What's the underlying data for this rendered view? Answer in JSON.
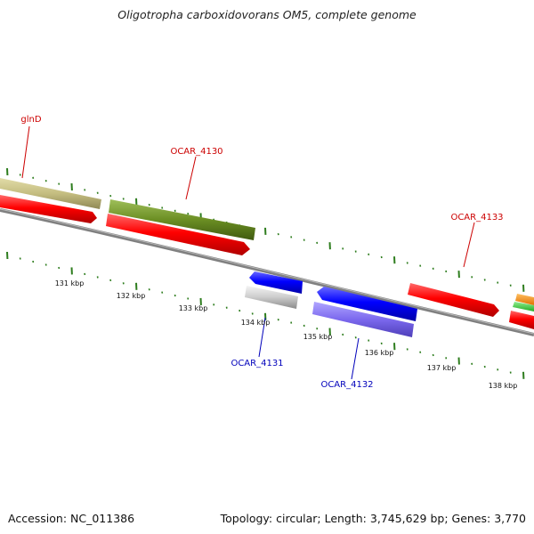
{
  "title": "Oligotropha carboxidovorans OM5, complete genome",
  "footer": {
    "accession": "Accession: NC_011386",
    "topology": "Topology: circular; Length: 3,745,629 bp; Genes: 3,770"
  },
  "scale": {
    "labels": [
      "131 kbp",
      "132 kbp",
      "133 kbp",
      "134 kbp",
      "135 kbp",
      "136 kbp",
      "137 kbp",
      "138 kbp"
    ]
  },
  "genes": [
    {
      "id": "glnD",
      "label": "glnD",
      "color": "#cc0000"
    },
    {
      "id": "OCAR_4130",
      "label": "OCAR_4130",
      "color": "#cc0000"
    },
    {
      "id": "OCAR_4133",
      "label": "OCAR_4133",
      "color": "#cc0000"
    },
    {
      "id": "OCAR_4131",
      "label": "OCAR_4131",
      "color": "#0000bb"
    },
    {
      "id": "OCAR_4132",
      "label": "OCAR_4132",
      "color": "#0000bb"
    }
  ],
  "colors": {
    "cds_red": "#ff0000",
    "cds_blue": "#0000ff",
    "khaki": "#bdb76b",
    "olive": "#6b8e23",
    "silver": "#c8c8c8",
    "slate": "#7b68ee",
    "orange": "#ff8c00",
    "green": "#33cc33",
    "backbone": "#808080",
    "ticks": "#2e7d1e"
  }
}
